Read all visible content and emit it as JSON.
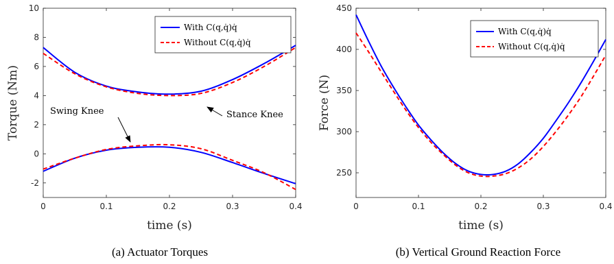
{
  "chart_data": [
    {
      "type": "line",
      "xlabel": "time (s)",
      "ylabel": "Torque (Nm)",
      "xlim": [
        0,
        0.4
      ],
      "ylim": [
        -3,
        10
      ],
      "xticks": [
        0,
        0.1,
        0.2,
        0.3,
        0.4
      ],
      "xtick_labels": [
        "0",
        "0.1",
        "0.2",
        "0.3",
        "0.4"
      ],
      "yticks": [
        -2,
        0,
        2,
        4,
        6,
        8,
        10
      ],
      "ytick_labels": [
        "-2",
        "0",
        "2",
        "4",
        "6",
        "8",
        "10"
      ],
      "grid": false,
      "legend_position": "top-right",
      "caption": "(a) Actuator Torques",
      "series": [
        {
          "name": "With C(q,q̇)q̇",
          "color": "#0000ff",
          "style": "solid",
          "x": [
            0,
            0.05,
            0.1,
            0.15,
            0.2,
            0.25,
            0.3,
            0.35,
            0.4
          ],
          "y": [
            7.3,
            5.6,
            4.65,
            4.25,
            4.1,
            4.3,
            5.1,
            6.2,
            7.45
          ]
        },
        {
          "name": "Without C(q,q̇)q̇",
          "color": "#ff0000",
          "style": "dashed",
          "x": [
            0,
            0.05,
            0.1,
            0.15,
            0.2,
            0.25,
            0.3,
            0.35,
            0.4
          ],
          "y": [
            6.9,
            5.5,
            4.6,
            4.15,
            4.0,
            4.15,
            4.9,
            6.0,
            7.3
          ]
        },
        {
          "name": "With C(q,q̇)q̇",
          "color": "#0000ff",
          "style": "solid",
          "x": [
            0,
            0.05,
            0.1,
            0.15,
            0.2,
            0.25,
            0.3,
            0.35,
            0.4
          ],
          "y": [
            -1.2,
            -0.3,
            0.25,
            0.45,
            0.45,
            0.1,
            -0.6,
            -1.35,
            -2.05
          ]
        },
        {
          "name": "Without C(q,q̇)q̇",
          "color": "#ff0000",
          "style": "dashed",
          "x": [
            0,
            0.05,
            0.1,
            0.15,
            0.2,
            0.25,
            0.3,
            0.35,
            0.4
          ],
          "y": [
            -1.05,
            -0.3,
            0.3,
            0.55,
            0.62,
            0.35,
            -0.45,
            -1.3,
            -2.45
          ]
        }
      ],
      "annotations": [
        {
          "text": "Swing Knee",
          "target_x": 0.14,
          "target_y": 0.55
        },
        {
          "text": "Stance Knee",
          "target_x": 0.258,
          "target_y": 4.3
        }
      ]
    },
    {
      "type": "line",
      "xlabel": "time (s)",
      "ylabel": "Force (N)",
      "xlim": [
        0,
        0.4
      ],
      "ylim": [
        220,
        450
      ],
      "xticks": [
        0,
        0.1,
        0.2,
        0.3,
        0.4
      ],
      "xtick_labels": [
        "0",
        "0.1",
        "0.2",
        "0.3",
        "0.4"
      ],
      "yticks": [
        250,
        300,
        350,
        400,
        450
      ],
      "ytick_labels": [
        "250",
        "300",
        "350",
        "400",
        "450"
      ],
      "grid": false,
      "legend_position": "top-right",
      "caption": "(b) Vertical Ground Reaction Force",
      "series": [
        {
          "name": "With C(q,q̇)q̇",
          "color": "#0000ff",
          "style": "solid",
          "x": [
            0,
            0.02,
            0.04,
            0.06,
            0.08,
            0.1,
            0.12,
            0.14,
            0.16,
            0.18,
            0.2,
            0.22,
            0.24,
            0.26,
            0.28,
            0.3,
            0.32,
            0.34,
            0.36,
            0.38,
            0.4
          ],
          "y": [
            442,
            410,
            380,
            354,
            330,
            308,
            290,
            274,
            261,
            252,
            248,
            248,
            252,
            261,
            275,
            292,
            313,
            335,
            359,
            385,
            412
          ]
        },
        {
          "name": "Without C(q,q̇)q̇",
          "color": "#ff0000",
          "style": "dashed",
          "x": [
            0,
            0.02,
            0.04,
            0.06,
            0.08,
            0.1,
            0.12,
            0.14,
            0.16,
            0.18,
            0.2,
            0.22,
            0.24,
            0.26,
            0.28,
            0.3,
            0.32,
            0.34,
            0.36,
            0.38,
            0.4
          ],
          "y": [
            420,
            397,
            373,
            349,
            326,
            305,
            287,
            272,
            259,
            250,
            246,
            246,
            249,
            256,
            267,
            282,
            300,
            320,
            342,
            367,
            393
          ]
        }
      ]
    }
  ],
  "legend_labels": {
    "with": "With C(q,q̇)q̇",
    "without": "Without C(q,q̇)q̇"
  }
}
